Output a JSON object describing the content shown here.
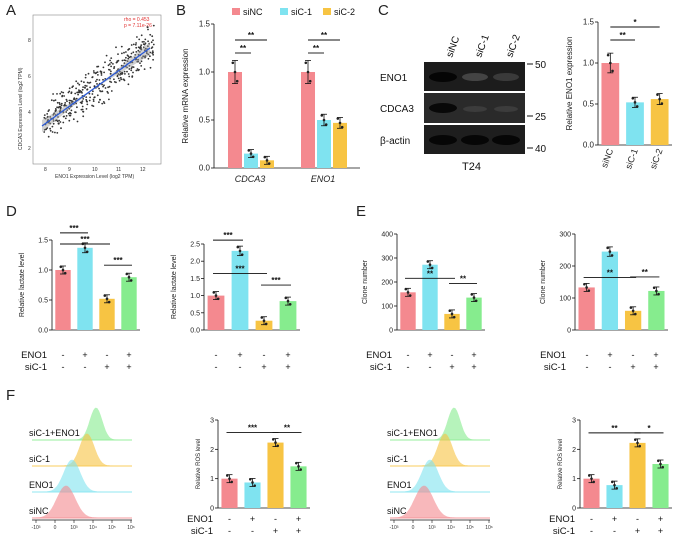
{
  "panels": {
    "a": {
      "label": "A",
      "stat_rho": "rho = 0.453",
      "stat_p": "p = 7.11e-26",
      "xlabel": "ENO1 Expression Level (log2 TPM)",
      "ylabel": "CDCA3 Expression Level (log2 TPM)",
      "x_ticks": [
        "8",
        "9",
        "10",
        "11",
        "12"
      ],
      "y_ticks": [
        "2",
        "4",
        "6",
        "8"
      ]
    },
    "b": {
      "label": "B"
    },
    "c": {
      "label": "C",
      "lanes": [
        "siNC",
        "siC-1",
        "siC-2"
      ],
      "blots": [
        "ENO1",
        "CDCA3",
        "β-actin"
      ],
      "markers": [
        "50",
        "25",
        "40"
      ],
      "cell_line": "T24"
    },
    "d": {
      "label": "D"
    },
    "e": {
      "label": "E"
    },
    "f": {
      "label": "F",
      "flow_labels": [
        "siC-1+ENO1",
        "siC-1",
        "ENO1",
        "siNC"
      ],
      "flow_axis": [
        "-10³",
        "0",
        "10³",
        "10⁴",
        "10⁵",
        "10⁶"
      ]
    }
  },
  "design": {
    "row_enoi": "ENO1",
    "row_sic": "siC-1",
    "enoi_signs": [
      "-",
      "+",
      "-",
      "+"
    ],
    "sic_signs": [
      "-",
      "-",
      "+",
      "+"
    ]
  },
  "colors": {
    "siNC": "#f4898f",
    "siC1": "#7fe3f0",
    "siC2": "#f7c443",
    "combo": "#86ec8e",
    "blue_line": "#2a59d6"
  },
  "chart_data": [
    {
      "id": "B",
      "type": "bar",
      "categories": [
        "CDCA3",
        "ENO1"
      ],
      "series": [
        {
          "name": "siNC",
          "values": [
            1.0,
            1.0
          ]
        },
        {
          "name": "siC-1",
          "values": [
            0.15,
            0.5
          ]
        },
        {
          "name": "siC-2",
          "values": [
            0.08,
            0.47
          ]
        }
      ],
      "ylabel": "Relative mRNA expression",
      "ylim": [
        0,
        1.5
      ],
      "yticks": [
        "0.0",
        "0.5",
        "1.0",
        "1.5"
      ],
      "sig": [
        "**",
        "**",
        "**",
        "**"
      ]
    },
    {
      "id": "C-bar",
      "type": "bar",
      "categories": [
        "siNC",
        "siC-1",
        "siC-2"
      ],
      "values": [
        1.0,
        0.52,
        0.56
      ],
      "ylabel": "Relative ENO1 expression",
      "ylim": [
        0,
        1.5
      ],
      "yticks": [
        "0.0",
        "0.5",
        "1.0",
        "1.5"
      ],
      "sig": [
        "**",
        "*"
      ]
    },
    {
      "id": "D1",
      "type": "bar",
      "values": [
        1.0,
        1.37,
        0.52,
        0.88
      ],
      "ylabel": "Relative lactate level",
      "ylim": [
        0,
        1.5
      ],
      "yticks": [
        "0.0",
        "0.5",
        "1.0",
        "1.5"
      ],
      "sig": [
        "***",
        "***",
        "***"
      ]
    },
    {
      "id": "D2",
      "type": "bar",
      "values": [
        1.0,
        2.3,
        0.27,
        0.84
      ],
      "ylabel": "Relative lactate level",
      "ylim": [
        0,
        2.5
      ],
      "yticks": [
        "0.0",
        "0.5",
        "1.0",
        "1.5",
        "2.0",
        "2.5"
      ],
      "sig": [
        "***",
        "***",
        "***"
      ]
    },
    {
      "id": "E1",
      "type": "bar",
      "values": [
        157,
        272,
        67,
        135
      ],
      "ylabel": "Clone number",
      "ylim": [
        0,
        400
      ],
      "yticks": [
        "0",
        "100",
        "200",
        "300",
        "400"
      ],
      "sig": [
        "**",
        "**"
      ]
    },
    {
      "id": "E2",
      "type": "bar",
      "values": [
        133,
        245,
        60,
        122
      ],
      "ylabel": "Clone number",
      "ylim": [
        0,
        300
      ],
      "yticks": [
        "0",
        "100",
        "200",
        "300"
      ],
      "sig": [
        "**",
        "**"
      ]
    },
    {
      "id": "F1",
      "type": "bar",
      "values": [
        1.0,
        0.87,
        2.23,
        1.42
      ],
      "ylabel": "Relative ROS level",
      "ylim": [
        0,
        3
      ],
      "yticks": [
        "0",
        "1",
        "2",
        "3"
      ],
      "sig": [
        "***",
        "**"
      ]
    },
    {
      "id": "F2",
      "type": "bar",
      "values": [
        1.0,
        0.78,
        2.22,
        1.5
      ],
      "ylabel": "Relative ROS level",
      "ylim": [
        0,
        3
      ],
      "yticks": [
        "0",
        "1",
        "2",
        "3"
      ],
      "sig": [
        "**",
        "*"
      ]
    }
  ]
}
